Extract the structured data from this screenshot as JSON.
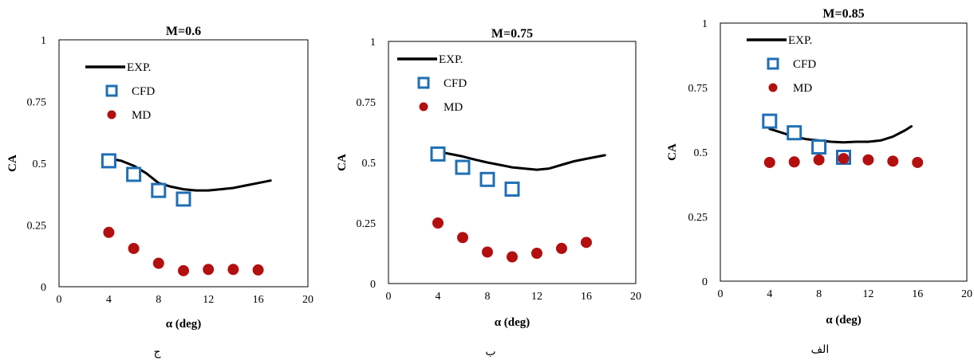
{
  "chart_data": [
    {
      "type": "scatter",
      "title": "M=0.6",
      "xlabel": "α (deg)",
      "ylabel": "CA",
      "caption": "ج",
      "xlim": [
        0,
        20
      ],
      "ylim": [
        0,
        1
      ],
      "xticks": [
        "0",
        "4",
        "8",
        "12",
        "16",
        "20"
      ],
      "yticks": [
        "0",
        "0.25",
        "0.5",
        "0.75",
        "1"
      ],
      "series": [
        {
          "name": "EXP.",
          "kind": "line",
          "color": "#000000",
          "x": [
            4,
            5,
            6,
            7,
            8,
            9,
            10,
            11,
            12,
            13,
            14,
            15,
            16,
            17
          ],
          "y": [
            0.52,
            0.51,
            0.49,
            0.46,
            0.42,
            0.405,
            0.395,
            0.39,
            0.39,
            0.395,
            0.4,
            0.41,
            0.42,
            0.43
          ]
        },
        {
          "name": "CFD",
          "kind": "square",
          "color": "#1f6fb5",
          "x": [
            4,
            6,
            8,
            10
          ],
          "y": [
            0.51,
            0.455,
            0.39,
            0.355
          ]
        },
        {
          "name": "MD",
          "kind": "circle",
          "color": "#b30f0f",
          "x": [
            4,
            6,
            8,
            10,
            12,
            14,
            16
          ],
          "y": [
            0.22,
            0.155,
            0.095,
            0.065,
            0.07,
            0.07,
            0.068
          ]
        }
      ]
    },
    {
      "type": "scatter",
      "title": "M=0.75",
      "xlabel": "α (deg)",
      "ylabel": "CA",
      "caption": "ب",
      "xlim": [
        0,
        20
      ],
      "ylim": [
        0,
        1
      ],
      "xticks": [
        "0",
        "4",
        "8",
        "12",
        "16",
        "20"
      ],
      "yticks": [
        "0",
        "0.25",
        "0.5",
        "0.75",
        "1"
      ],
      "series": [
        {
          "name": "EXP.",
          "kind": "line",
          "color": "#000000",
          "x": [
            4,
            5,
            6,
            7,
            8,
            9,
            10,
            11,
            12,
            13,
            14,
            15,
            16,
            17,
            17.5
          ],
          "y": [
            0.545,
            0.535,
            0.525,
            0.512,
            0.5,
            0.49,
            0.48,
            0.475,
            0.47,
            0.475,
            0.49,
            0.505,
            0.515,
            0.525,
            0.53
          ]
        },
        {
          "name": "CFD",
          "kind": "square",
          "color": "#1f6fb5",
          "x": [
            4,
            6,
            8,
            10
          ],
          "y": [
            0.535,
            0.48,
            0.43,
            0.39
          ]
        },
        {
          "name": "MD",
          "kind": "circle",
          "color": "#b30f0f",
          "x": [
            4,
            6,
            8,
            10,
            12,
            14,
            16
          ],
          "y": [
            0.25,
            0.19,
            0.13,
            0.11,
            0.125,
            0.145,
            0.17
          ]
        }
      ]
    },
    {
      "type": "scatter",
      "title": "M=0.85",
      "xlabel": "α (deg)",
      "ylabel": "CA",
      "caption": "الف",
      "xlim": [
        0,
        20
      ],
      "ylim": [
        0,
        1
      ],
      "xticks": [
        "0",
        "4",
        "8",
        "12",
        "16",
        "20"
      ],
      "yticks": [
        "0",
        "0.25",
        "0.5",
        "0.75",
        "1"
      ],
      "series": [
        {
          "name": "EXP.",
          "kind": "line",
          "color": "#000000",
          "x": [
            4,
            5,
            6,
            7,
            8,
            9,
            10,
            11,
            12,
            13,
            14,
            15,
            15.5
          ],
          "y": [
            0.59,
            0.575,
            0.56,
            0.55,
            0.545,
            0.54,
            0.538,
            0.54,
            0.54,
            0.545,
            0.56,
            0.585,
            0.6
          ]
        },
        {
          "name": "CFD",
          "kind": "square",
          "color": "#1f6fb5",
          "x": [
            4,
            6,
            8,
            10
          ],
          "y": [
            0.62,
            0.575,
            0.52,
            0.48
          ]
        },
        {
          "name": "MD",
          "kind": "circle",
          "color": "#b30f0f",
          "x": [
            4,
            6,
            8,
            10,
            12,
            14,
            16
          ],
          "y": [
            0.46,
            0.462,
            0.47,
            0.475,
            0.47,
            0.465,
            0.46
          ]
        }
      ]
    }
  ]
}
